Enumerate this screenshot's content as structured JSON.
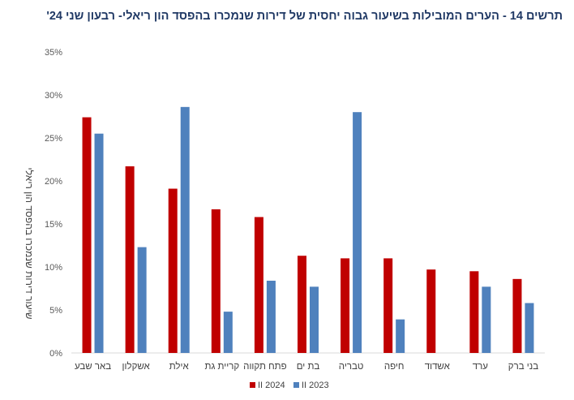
{
  "chart_data": {
    "type": "bar",
    "title": "תרשים 14 - הערים המובילות בשיעור גבוה יחסית של דירות שנמכרו בהפסד הון ריאלי- רבעון שני 24'",
    "xlabel": "",
    "ylabel": "שיעור דירות שנמכרו בהפסד הון ריאלי",
    "ylim": [
      0,
      35
    ],
    "yticks": [
      "0%",
      "5%",
      "10%",
      "15%",
      "20%",
      "25%",
      "30%",
      "35%"
    ],
    "grid": false,
    "legend_position": "bottom",
    "categories": [
      "באר שבע",
      "אשקלון",
      "אילת",
      "קריית גת",
      "פתח תקווה",
      "בת ים",
      "טבריה",
      "חיפה",
      "אשדוד",
      "ערד",
      "בני ברק"
    ],
    "series": [
      {
        "name": "II 2024",
        "color": "#c00000",
        "values": [
          27.4,
          21.7,
          19.1,
          16.7,
          15.8,
          11.3,
          11.0,
          11.0,
          9.7,
          9.5,
          8.6
        ]
      },
      {
        "name": "II 2023",
        "color": "#4f81bd",
        "values": [
          25.5,
          12.3,
          28.6,
          4.8,
          8.4,
          7.7,
          28.0,
          3.9,
          null,
          7.7,
          5.8
        ]
      }
    ]
  }
}
